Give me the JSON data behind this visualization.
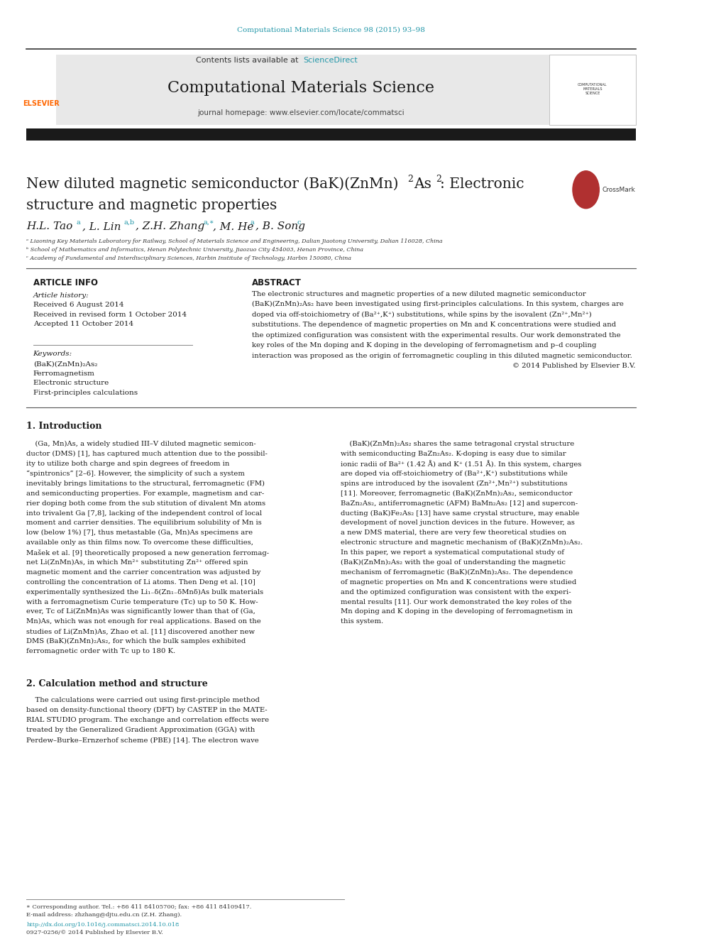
{
  "page_width": 9.92,
  "page_height": 13.23,
  "bg_color": "#ffffff",
  "journal_ref_color": "#2196A8",
  "journal_ref": "Computational Materials Science 98 (2015) 93–98",
  "header_bg": "#e8e8e8",
  "header_text": "Contents lists available at ",
  "sciencedirect_text": "ScienceDirect",
  "sciencedirect_color": "#2196A8",
  "journal_name": "Computational Materials Science",
  "journal_url": "journal homepage: www.elsevier.com/locate/commatsci",
  "dark_bar_color": "#1a1a1a",
  "elsevier_color": "#ff6600",
  "article_info_header": "ARTICLE INFO",
  "abstract_header": "ABSTRACT",
  "article_history_label": "Article history:",
  "received1": "Received 6 August 2014",
  "received2": "Received in revised form 1 October 2014",
  "accepted": "Accepted 11 October 2014",
  "keywords_label": "Keywords:",
  "keyword1": "(BaK)(ZnMn)₂As₂",
  "keyword2": "Ferromagnetism",
  "keyword3": "Electronic structure",
  "keyword4": "First-principles calculations",
  "affil1": "ᵃ Liaoning Key Materials Laboratory for Railway, School of Materials Science and Engineering, Dalian Jiaotong University, Dalian 116028, China",
  "affil2": "ᵇ School of Mathematics and Informatics, Henan Polytechnic University, Jiaozuo City 454003, Henan Province, China",
  "affil3": "ᶜ Academy of Fundamental and Interdisciplinary Sciences, Harbin Institute of Technology, Harbin 150080, China",
  "section1_header": "1. Introduction",
  "section2_header": "2. Calculation method and structure",
  "footer_line1": "∗ Corresponding author. Tel.: +86 411 84105700; fax: +86 411 84109417.",
  "footer_line2": "E-mail address: zhzhang@djtu.edu.cn (Z.H. Zhang).",
  "footer_line3": "http://dx.doi.org/10.1016/j.commatsci.2014.10.018",
  "footer_line4": "0927-0256/© 2014 Published by Elsevier B.V.",
  "ref_color": "#2196A8"
}
